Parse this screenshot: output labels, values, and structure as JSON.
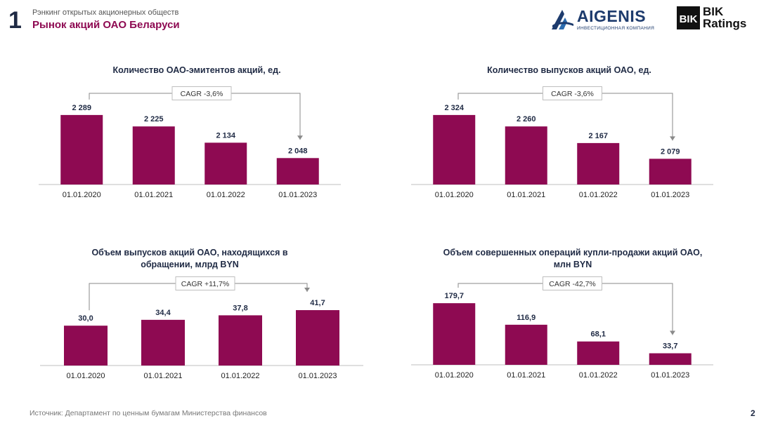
{
  "header": {
    "page_number": "1",
    "subtitle": "Рэнкинг открытых акционерных обществ",
    "title": "Рынок акций ОАО Беларуси"
  },
  "logos": {
    "aigenis_name": "AIGENIS",
    "aigenis_tag": "ИНВЕСТИЦИОННАЯ КОМПАНИЯ",
    "bik_name_line1": "BIK",
    "bik_name_line2": "Ratings",
    "bik_mark": "BIK"
  },
  "colors": {
    "bar": "#8e0a52",
    "axis": "#bfbfbf",
    "text": "#1f2a44",
    "accent": "#8e0a52"
  },
  "footer": {
    "source": "Источник: Департамент по ценным бумагам Министерства финансов",
    "slide_number": "2"
  },
  "chart_data": [
    {
      "type": "bar",
      "title": "Количество ОАО-эмитентов акций, ед.",
      "cagr": "CAGR -3,6%",
      "categories": [
        "01.01.2020",
        "01.01.2021",
        "01.01.2022",
        "01.01.2023"
      ],
      "values": [
        2289,
        2225,
        2134,
        2048
      ],
      "labels": [
        "2 289",
        "2 225",
        "2 134",
        "2 048"
      ],
      "ylim": [
        1900,
        2320
      ]
    },
    {
      "type": "bar",
      "title": "Количество выпусков акций ОАО, ед.",
      "cagr": "CAGR -3,6%",
      "categories": [
        "01.01.2020",
        "01.01.2021",
        "01.01.2022",
        "01.01.2023"
      ],
      "values": [
        2324,
        2260,
        2167,
        2079
      ],
      "labels": [
        "2 324",
        "2 260",
        "2 167",
        "2 079"
      ],
      "ylim": [
        1935,
        2355
      ]
    },
    {
      "type": "bar",
      "title": "Объем выпусков акций ОАО, находящихся в обращении, млрд BYN",
      "cagr": "CAGR +11,7%",
      "categories": [
        "01.01.2020",
        "01.01.2021",
        "01.01.2022",
        "01.01.2023"
      ],
      "values": [
        30.0,
        34.4,
        37.8,
        41.7
      ],
      "labels": [
        "30,0",
        "34,4",
        "37,8",
        "41,7"
      ],
      "ylim": [
        0,
        47
      ]
    },
    {
      "type": "bar",
      "title": "Объем совершенных операций купли-продажи акций ОАО, млн BYN",
      "cagr": "CAGR -42,7%",
      "categories": [
        "01.01.2020",
        "01.01.2021",
        "01.01.2022",
        "01.01.2023"
      ],
      "values": [
        179.7,
        116.9,
        68.1,
        33.7
      ],
      "labels": [
        "179,7",
        "116,9",
        "68,1",
        "33,7"
      ],
      "ylim": [
        0,
        180
      ]
    }
  ]
}
